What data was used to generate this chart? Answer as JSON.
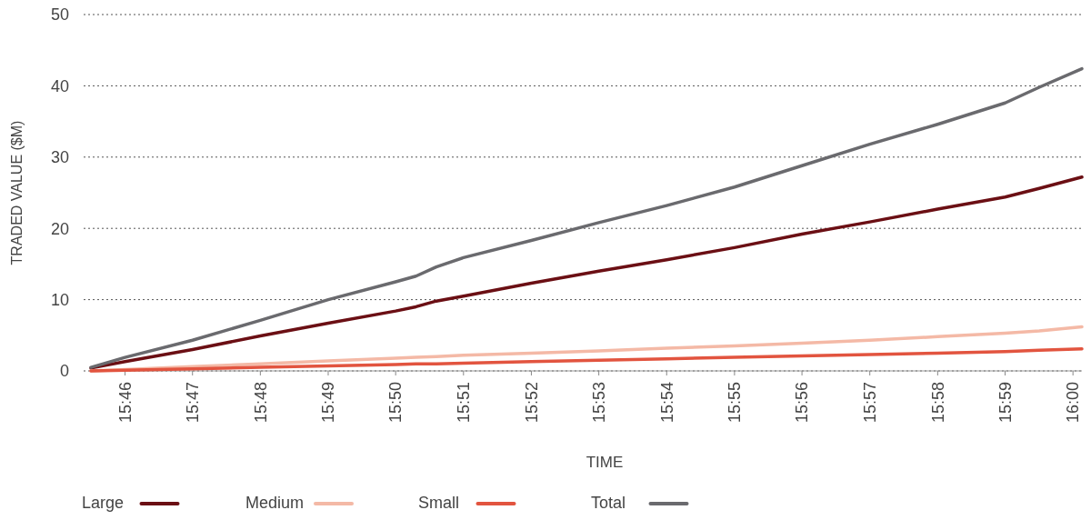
{
  "chart_data": {
    "type": "line",
    "xlabel": "TIME",
    "ylabel": "TRADED VALUE ($M)",
    "x": [
      15.7583,
      15.7667,
      15.7833,
      15.8,
      15.8167,
      15.8333,
      15.8383,
      15.8433,
      15.85,
      15.8667,
      15.8833,
      15.9,
      15.9167,
      15.9333,
      15.95,
      15.9667,
      15.9833,
      15.9917,
      16.0022
    ],
    "series": [
      {
        "name": "Large",
        "color": "#6b0f14",
        "values": [
          0.4,
          1.3,
          3.0,
          4.9,
          6.7,
          8.4,
          9.0,
          9.8,
          10.5,
          12.3,
          14.0,
          15.6,
          17.3,
          19.2,
          20.9,
          22.7,
          24.4,
          25.6,
          27.2
        ]
      },
      {
        "name": "Medium",
        "color": "#f4b9a6",
        "values": [
          0,
          0.2,
          0.6,
          1.0,
          1.4,
          1.8,
          1.9,
          2.0,
          2.2,
          2.5,
          2.8,
          3.2,
          3.5,
          3.9,
          4.3,
          4.8,
          5.3,
          5.6,
          6.2
        ]
      },
      {
        "name": "Small",
        "color": "#e2543f",
        "values": [
          0,
          0.1,
          0.3,
          0.5,
          0.7,
          0.9,
          1.0,
          1.0,
          1.1,
          1.3,
          1.5,
          1.7,
          1.9,
          2.1,
          2.3,
          2.5,
          2.7,
          2.9,
          3.1
        ]
      },
      {
        "name": "Total",
        "color": "#6a6a6e",
        "values": [
          0.5,
          1.9,
          4.3,
          7.1,
          10.0,
          12.5,
          13.3,
          14.6,
          15.9,
          18.3,
          20.8,
          23.2,
          25.8,
          28.8,
          31.8,
          34.6,
          37.6,
          39.8,
          42.4
        ]
      }
    ],
    "xlim": [
      15.7583,
      16.0022
    ],
    "xticks": [
      {
        "value": 15.7667,
        "label": "15:46"
      },
      {
        "value": 15.7833,
        "label": "15:47"
      },
      {
        "value": 15.8,
        "label": "15:48"
      },
      {
        "value": 15.8167,
        "label": "15:49"
      },
      {
        "value": 15.8333,
        "label": "15:50"
      },
      {
        "value": 15.85,
        "label": "15:51"
      },
      {
        "value": 15.8667,
        "label": "15:52"
      },
      {
        "value": 15.8833,
        "label": "15:53"
      },
      {
        "value": 15.9,
        "label": "15:54"
      },
      {
        "value": 15.9167,
        "label": "15:55"
      },
      {
        "value": 15.9333,
        "label": "15:56"
      },
      {
        "value": 15.95,
        "label": "15:57"
      },
      {
        "value": 15.9667,
        "label": "15:58"
      },
      {
        "value": 15.9833,
        "label": "15:59"
      },
      {
        "value": 16.0,
        "label": "16:00"
      }
    ],
    "ylim": [
      0,
      50
    ],
    "yticks": [
      0,
      10,
      20,
      30,
      40,
      50
    ],
    "grid": "y",
    "legend": "bottom",
    "marker": "none",
    "line_style": "solid"
  }
}
